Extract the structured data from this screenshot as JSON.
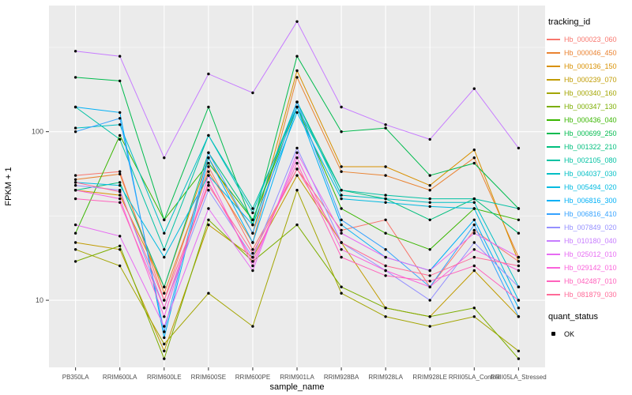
{
  "chart_data": {
    "type": "line",
    "title": "",
    "xlabel": "sample_name",
    "ylabel": "FPKM + 1",
    "y_scale": "log10",
    "ylim": [
      4,
      560
    ],
    "y_major_ticks": [
      10,
      100
    ],
    "y_minor_ticks": [
      31.6,
      316
    ],
    "panel_bg": "#EBEBEB",
    "grid_color": "#FFFFFF",
    "point_color": "#000000",
    "tick_label_color": "#4D4D4D",
    "categories": [
      "PB350LA",
      "RRIM600LA",
      "RRIM600LE",
      "RRIM600SE",
      "RRIM600PE",
      "RRIM901LA",
      "RRIM928BA",
      "RRIM928LA",
      "RRIM928LE",
      "RRII05LA_Control",
      "RRII05LA_Stressed"
    ],
    "series": [
      {
        "name": "Hb_000023_060",
        "color": "#F8766D",
        "values": [
          55,
          58,
          10,
          62,
          20,
          60,
          26,
          30,
          12,
          26,
          17
        ]
      },
      {
        "name": "Hb_000046_450",
        "color": "#EA8331",
        "values": [
          52,
          56,
          11,
          58,
          22,
          210,
          58,
          55,
          45,
          70,
          18
        ]
      },
      {
        "name": "Hb_000136_150",
        "color": "#D89000",
        "values": [
          45,
          42,
          12,
          70,
          25,
          230,
          62,
          62,
          48,
          78,
          17
        ]
      },
      {
        "name": "Hb_000239_070",
        "color": "#C09B00",
        "values": [
          22,
          20,
          5,
          28,
          18,
          55,
          22,
          9,
          8,
          15,
          8
        ]
      },
      {
        "name": "Hb_000340_160",
        "color": "#A3A500",
        "values": [
          20,
          16,
          5.5,
          11,
          7,
          45,
          11,
          8,
          7,
          8,
          5
        ]
      },
      {
        "name": "Hb_000347_130",
        "color": "#7CAE00",
        "values": [
          17,
          21,
          4.5,
          30,
          17,
          28,
          12,
          9,
          8,
          9,
          4.5
        ]
      },
      {
        "name": "Hb_000436_040",
        "color": "#39B600",
        "values": [
          25,
          95,
          30,
          65,
          30,
          140,
          35,
          25,
          20,
          35,
          30
        ]
      },
      {
        "name": "Hb_000699_250",
        "color": "#00BB4E",
        "values": [
          210,
          200,
          30,
          140,
          28,
          280,
          100,
          105,
          55,
          65,
          35
        ]
      },
      {
        "name": "Hb_001322_210",
        "color": "#00BF7D",
        "values": [
          45,
          50,
          12,
          75,
          30,
          150,
          45,
          40,
          30,
          40,
          25
        ]
      },
      {
        "name": "Hb_002105_080",
        "color": "#00C1A3",
        "values": [
          140,
          90,
          20,
          95,
          35,
          140,
          45,
          42,
          40,
          40,
          35
        ]
      },
      {
        "name": "Hb_004037_030",
        "color": "#00BFC4",
        "values": [
          105,
          110,
          25,
          95,
          33,
          150,
          42,
          40,
          38,
          38,
          12
        ]
      },
      {
        "name": "Hb_005494_020",
        "color": "#00BAE0",
        "values": [
          50,
          48,
          18,
          55,
          28,
          130,
          40,
          38,
          36,
          35,
          10
        ]
      },
      {
        "name": "Hb_006816_300",
        "color": "#00B0F6",
        "values": [
          140,
          130,
          6,
          70,
          22,
          140,
          28,
          18,
          15,
          30,
          9
        ]
      },
      {
        "name": "Hb_006816_410",
        "color": "#35A2FF",
        "values": [
          100,
          120,
          6.5,
          75,
          25,
          150,
          30,
          20,
          12,
          28,
          8
        ]
      },
      {
        "name": "Hb_007849_020",
        "color": "#9590FF",
        "values": [
          48,
          45,
          9,
          45,
          18,
          80,
          22,
          15,
          10,
          22,
          12
        ]
      },
      {
        "name": "Hb_010180_040",
        "color": "#C77CFF",
        "values": [
          300,
          280,
          70,
          220,
          170,
          450,
          140,
          110,
          90,
          180,
          80
        ]
      },
      {
        "name": "Hb_025012_010",
        "color": "#E76BF3",
        "values": [
          28,
          24,
          7,
          35,
          15,
          75,
          25,
          18,
          15,
          25,
          18
        ]
      },
      {
        "name": "Hb_029142_010",
        "color": "#FA62DB",
        "values": [
          45,
          40,
          8,
          55,
          16,
          70,
          20,
          15,
          12,
          20,
          15
        ]
      },
      {
        "name": "Hb_042487_010",
        "color": "#FF62BC",
        "values": [
          40,
          38,
          9,
          50,
          17,
          65,
          18,
          14,
          13,
          16,
          10
        ]
      },
      {
        "name": "Hb_081879_030",
        "color": "#FF6A98",
        "values": [
          50,
          44,
          10,
          48,
          19,
          60,
          22,
          16,
          14,
          18,
          16
        ]
      }
    ],
    "legend": {
      "color_title": "tracking_id",
      "shape_title": "quant_status",
      "shape_entries": [
        {
          "label": "OK"
        }
      ]
    }
  }
}
